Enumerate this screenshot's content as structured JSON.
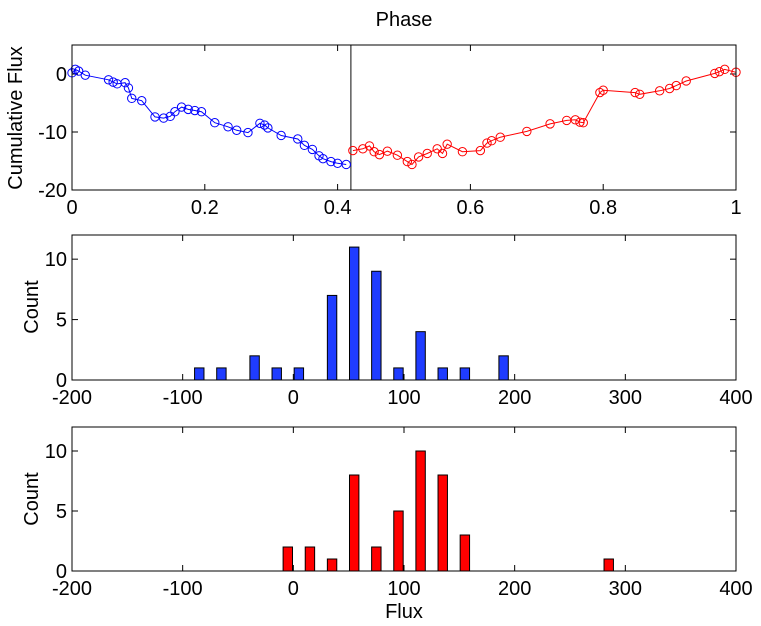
{
  "chart_data": [
    {
      "type": "line",
      "title": "Phase",
      "xlabel": "",
      "ylabel": "Cumulative Flux",
      "xlim": [
        0,
        1
      ],
      "ylim": [
        -20,
        5
      ],
      "xticks": [
        0,
        0.2,
        0.4,
        0.6,
        0.8,
        1
      ],
      "xtick_labels": [
        "0",
        "0.2",
        "0.4",
        "0.6",
        "0.8",
        "1"
      ],
      "yticks": [
        0,
        -10,
        -20
      ],
      "ytick_labels": [
        "0",
        "-10",
        "-20"
      ],
      "vline": 0.42,
      "series": [
        {
          "name": "blue",
          "color": "#0000ff",
          "points": [
            [
              0.0,
              0.2
            ],
            [
              0.005,
              0.8
            ],
            [
              0.01,
              0.5
            ],
            [
              0.02,
              -0.2
            ],
            [
              0.055,
              -1.0
            ],
            [
              0.062,
              -1.4
            ],
            [
              0.068,
              -1.7
            ],
            [
              0.08,
              -1.5
            ],
            [
              0.085,
              -2.4
            ],
            [
              0.09,
              -4.2
            ],
            [
              0.105,
              -4.6
            ],
            [
              0.125,
              -7.4
            ],
            [
              0.138,
              -7.6
            ],
            [
              0.148,
              -7.3
            ],
            [
              0.155,
              -6.5
            ],
            [
              0.165,
              -5.7
            ],
            [
              0.175,
              -6.1
            ],
            [
              0.185,
              -6.3
            ],
            [
              0.195,
              -6.5
            ],
            [
              0.215,
              -8.4
            ],
            [
              0.235,
              -9.1
            ],
            [
              0.248,
              -9.7
            ],
            [
              0.265,
              -10.1
            ],
            [
              0.283,
              -8.5
            ],
            [
              0.29,
              -8.8
            ],
            [
              0.295,
              -9.3
            ],
            [
              0.315,
              -10.6
            ],
            [
              0.34,
              -11.2
            ],
            [
              0.35,
              -12.3
            ],
            [
              0.362,
              -13.0
            ],
            [
              0.372,
              -14.1
            ],
            [
              0.378,
              -14.6
            ],
            [
              0.39,
              -15.1
            ],
            [
              0.4,
              -15.4
            ],
            [
              0.413,
              -15.6
            ]
          ]
        },
        {
          "name": "red",
          "color": "#ff0000",
          "points": [
            [
              0.423,
              -13.2
            ],
            [
              0.438,
              -12.9
            ],
            [
              0.448,
              -12.4
            ],
            [
              0.455,
              -13.4
            ],
            [
              0.463,
              -13.9
            ],
            [
              0.475,
              -13.3
            ],
            [
              0.49,
              -14.0
            ],
            [
              0.505,
              -15.1
            ],
            [
              0.512,
              -15.6
            ],
            [
              0.522,
              -14.3
            ],
            [
              0.535,
              -13.7
            ],
            [
              0.55,
              -12.9
            ],
            [
              0.558,
              -13.7
            ],
            [
              0.565,
              -12.1
            ],
            [
              0.588,
              -13.4
            ],
            [
              0.615,
              -13.2
            ],
            [
              0.625,
              -11.9
            ],
            [
              0.632,
              -11.5
            ],
            [
              0.645,
              -10.9
            ],
            [
              0.685,
              -9.9
            ],
            [
              0.72,
              -8.6
            ],
            [
              0.745,
              -8.0
            ],
            [
              0.758,
              -7.9
            ],
            [
              0.765,
              -8.3
            ],
            [
              0.77,
              -8.4
            ],
            [
              0.795,
              -3.2
            ],
            [
              0.8,
              -2.8
            ],
            [
              0.848,
              -3.2
            ],
            [
              0.855,
              -3.5
            ],
            [
              0.885,
              -2.9
            ],
            [
              0.9,
              -2.5
            ],
            [
              0.91,
              -2.0
            ],
            [
              0.925,
              -1.2
            ],
            [
              0.968,
              0.1
            ],
            [
              0.975,
              0.4
            ],
            [
              0.983,
              0.8
            ],
            [
              1.0,
              0.3
            ]
          ]
        }
      ]
    },
    {
      "type": "bar",
      "title": "",
      "xlabel": "",
      "ylabel": "Count",
      "xlim": [
        -200,
        400
      ],
      "ylim": [
        0,
        12
      ],
      "xticks": [
        -200,
        -100,
        0,
        100,
        200,
        300,
        400
      ],
      "xtick_labels": [
        "-200",
        "-100",
        "0",
        "100",
        "200",
        "300",
        "400"
      ],
      "yticks": [
        0,
        5,
        10
      ],
      "ytick_labels": [
        "0",
        "5",
        "10"
      ],
      "bin_width": 10,
      "color": "#1f3cff",
      "bins": [
        -85,
        -65,
        -35,
        -15,
        5,
        35,
        55,
        75,
        95,
        115,
        135,
        155,
        190
      ],
      "values": [
        1,
        1,
        2,
        1,
        1,
        7,
        11,
        9,
        1,
        4,
        1,
        1,
        2
      ]
    },
    {
      "type": "bar",
      "title": "",
      "xlabel": "Flux",
      "ylabel": "Count",
      "xlim": [
        -200,
        400
      ],
      "ylim": [
        0,
        12
      ],
      "xticks": [
        -200,
        -100,
        0,
        100,
        200,
        300,
        400
      ],
      "xtick_labels": [
        "-200",
        "-100",
        "0",
        "100",
        "200",
        "300",
        "400"
      ],
      "yticks": [
        0,
        5,
        10
      ],
      "ytick_labels": [
        "0",
        "5",
        "10"
      ],
      "bin_width": 10,
      "color": "#ff0000",
      "bins": [
        -5,
        15,
        35,
        55,
        75,
        95,
        115,
        135,
        155,
        285
      ],
      "values": [
        2,
        2,
        1,
        8,
        2,
        5,
        10,
        8,
        3,
        1
      ]
    }
  ]
}
